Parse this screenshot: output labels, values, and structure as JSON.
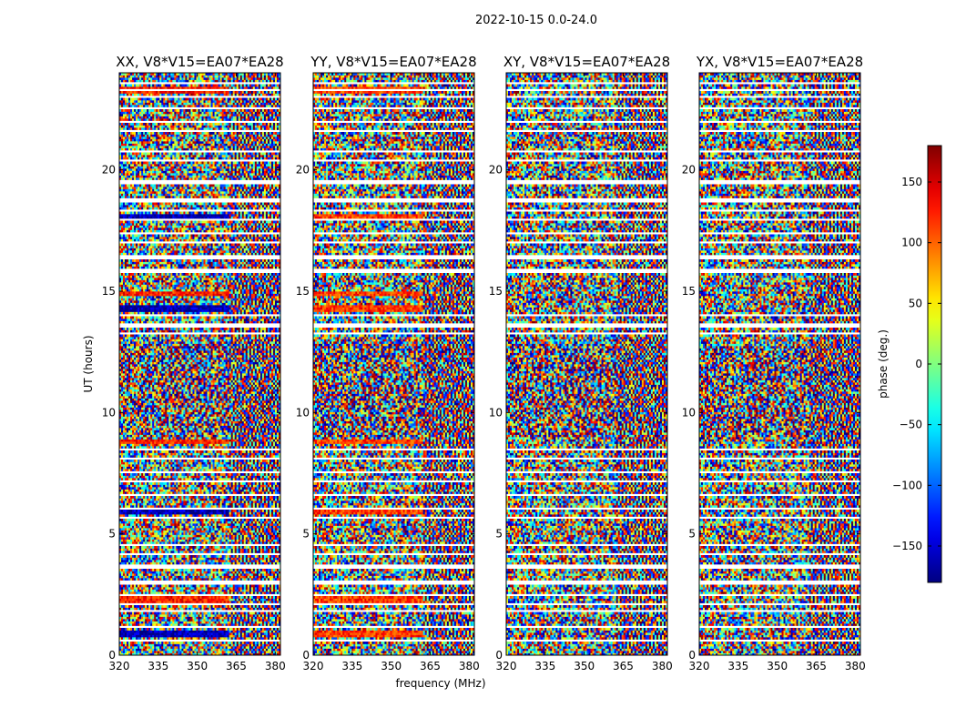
{
  "chart_data": {
    "type": "heatmap",
    "suptitle": "2022-10-15 0.0-24.0",
    "xlabel": "frequency (MHz)",
    "ylabel": "UT (hours)",
    "xlim": [
      320,
      382
    ],
    "ylim": [
      0,
      24
    ],
    "xticks": [
      320,
      335,
      350,
      365,
      380
    ],
    "yticks": [
      0,
      5,
      10,
      15,
      20
    ],
    "panels": [
      {
        "title": "XX, V8*V15=EA07*EA28",
        "pol": "XX"
      },
      {
        "title": "YY, V8*V15=EA07*EA28",
        "pol": "YY"
      },
      {
        "title": "XY, V8*V15=EA07*EA28",
        "pol": "XY"
      },
      {
        "title": "YX, V8*V15=EA07*EA28",
        "pol": "YX"
      }
    ],
    "colorbar": {
      "label": "phase (deg.)",
      "range": [
        -180,
        180
      ],
      "ticks": [
        150,
        100,
        50,
        0,
        -50,
        -100,
        -150
      ],
      "tick_labels": [
        "150",
        "100",
        "50",
        "0",
        "−50",
        "−100",
        "−150"
      ],
      "colormap": "jet"
    },
    "flagged_gaps_hours": [
      0.6,
      1.15,
      1.8,
      2.1,
      2.45,
      3.0,
      3.65,
      4.15,
      4.55,
      5.7,
      6.05,
      6.6,
      7.15,
      7.55,
      8.1,
      8.5,
      13.3,
      13.6,
      14.0,
      15.85,
      16.4,
      17.0,
      17.4,
      17.95,
      18.35,
      18.75,
      19.5,
      20.4,
      20.8,
      21.6,
      22.0,
      22.55,
      23.05,
      23.3,
      23.6
    ],
    "coherent_freq_start_mhz": 362,
    "strong_rows_hours": [
      0.9,
      2.3,
      5.9,
      8.8,
      14.3,
      14.9,
      18.1,
      23.3
    ]
  }
}
